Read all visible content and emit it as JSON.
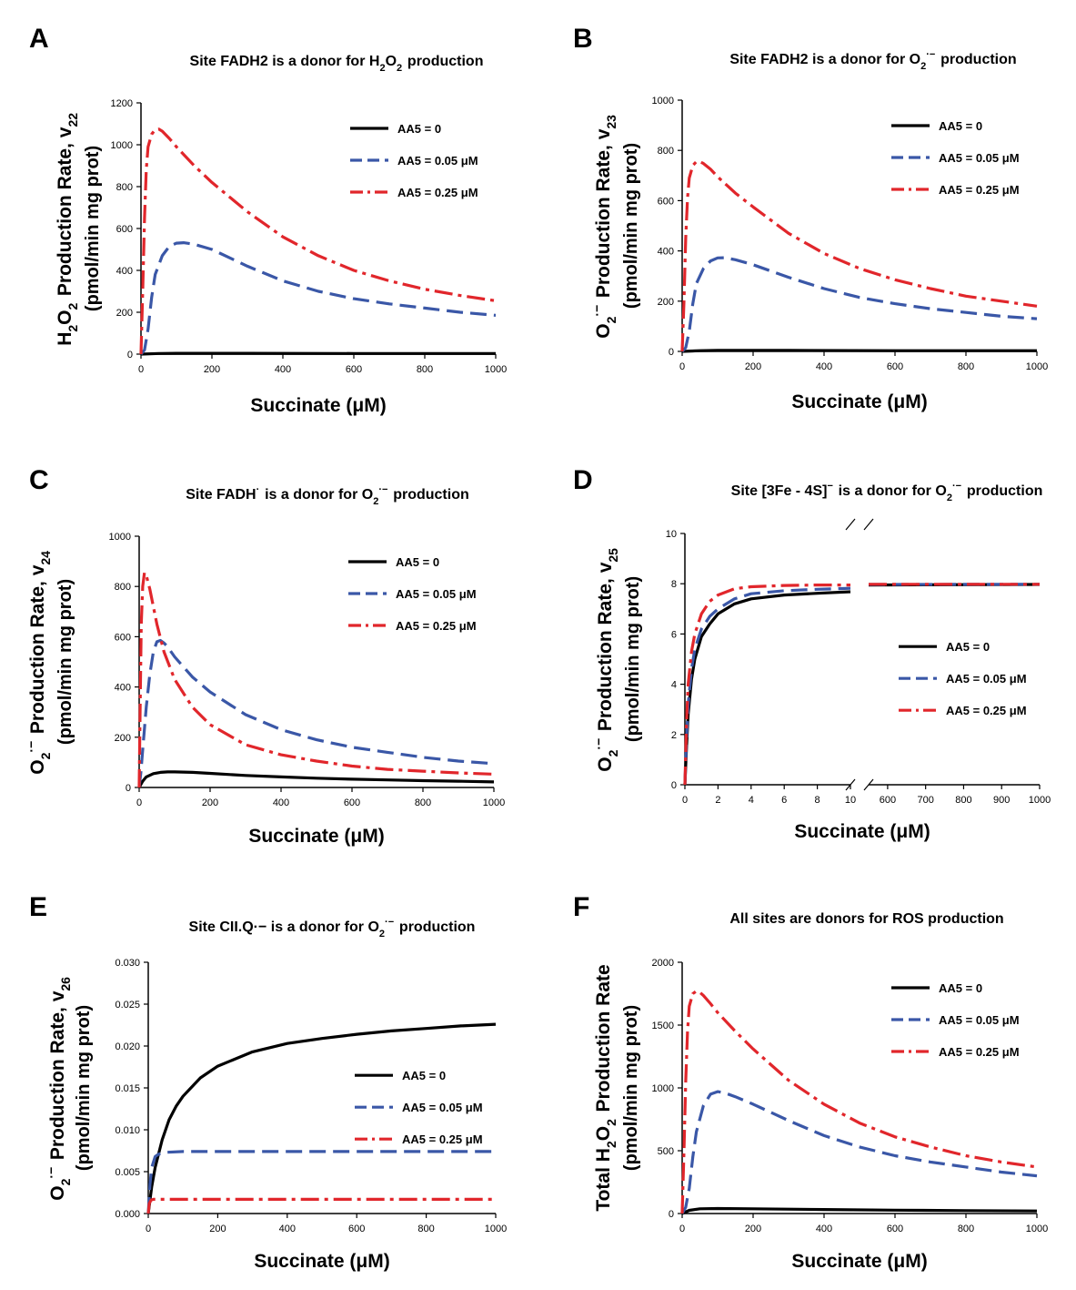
{
  "figure": {
    "x_axis_label": "Succinate (μM)",
    "legend_labels": [
      "AA5 = 0",
      "AA5 = 0.05 μM",
      "AA5 = 0.25 μM"
    ],
    "series_colors": [
      "#000000",
      "#3a57a7",
      "#e1262b"
    ]
  },
  "chart_data": [
    {
      "panel": "A",
      "type": "line",
      "title": "Site FADH2 is a donor for H2O2 production",
      "ylabel_line1": "H2O2 Production Rate, v22",
      "ylabel_line2": "(pmol/min mg prot)",
      "xlabel": "Succinate (μM)",
      "xlim": [
        0,
        1000
      ],
      "ylim": [
        0,
        1200
      ],
      "xticks": [
        0,
        200,
        400,
        600,
        800,
        1000
      ],
      "yticks": [
        0,
        200,
        400,
        600,
        800,
        1000,
        1200
      ],
      "legend_position": "top-right",
      "series": [
        {
          "name": "AA5 = 0",
          "x": [
            0,
            50,
            100,
            300,
            600,
            1000
          ],
          "y": [
            0,
            3,
            4,
            4,
            3,
            3
          ]
        },
        {
          "name": "AA5 = 0.05 μM",
          "x": [
            0,
            10,
            20,
            30,
            40,
            60,
            80,
            100,
            120,
            150,
            200,
            300,
            400,
            500,
            600,
            700,
            800,
            900,
            1000
          ],
          "y": [
            0,
            20,
            120,
            270,
            380,
            470,
            515,
            530,
            532,
            525,
            500,
            420,
            350,
            300,
            265,
            240,
            220,
            200,
            185
          ]
        },
        {
          "name": "AA5 = 0.25 μM",
          "x": [
            0,
            5,
            10,
            15,
            20,
            30,
            40,
            50,
            60,
            80,
            100,
            150,
            200,
            300,
            400,
            500,
            600,
            700,
            800,
            900,
            1000
          ],
          "y": [
            0,
            300,
            650,
            880,
            990,
            1050,
            1072,
            1075,
            1065,
            1030,
            990,
            900,
            820,
            680,
            560,
            470,
            400,
            350,
            310,
            280,
            255
          ]
        }
      ]
    },
    {
      "panel": "B",
      "type": "line",
      "title": "Site FADH2 is a donor for O2·− production",
      "ylabel_line1": "O2·− Production Rate, v23",
      "ylabel_line2": "(pmol/min mg prot)",
      "xlabel": "Succinate (μM)",
      "xlim": [
        0,
        1000
      ],
      "ylim": [
        0,
        1000
      ],
      "xticks": [
        0,
        200,
        400,
        600,
        800,
        1000
      ],
      "yticks": [
        0,
        200,
        400,
        600,
        800,
        1000
      ],
      "legend_position": "top-right",
      "series": [
        {
          "name": "AA5 = 0",
          "x": [
            0,
            50,
            100,
            300,
            600,
            1000
          ],
          "y": [
            0,
            3,
            4,
            4,
            3,
            3
          ]
        },
        {
          "name": "AA5 = 0.05 μM",
          "x": [
            0,
            10,
            20,
            30,
            40,
            60,
            80,
            100,
            120,
            150,
            200,
            300,
            400,
            500,
            600,
            700,
            800,
            900,
            1000
          ],
          "y": [
            0,
            15,
            80,
            190,
            270,
            330,
            360,
            372,
            373,
            365,
            345,
            295,
            250,
            215,
            190,
            170,
            155,
            140,
            130
          ]
        },
        {
          "name": "AA5 = 0.25 μM",
          "x": [
            0,
            5,
            10,
            15,
            20,
            30,
            40,
            50,
            60,
            80,
            100,
            150,
            200,
            300,
            400,
            500,
            600,
            700,
            800,
            900,
            1000
          ],
          "y": [
            0,
            200,
            450,
            610,
            690,
            740,
            755,
            755,
            748,
            725,
            695,
            630,
            575,
            470,
            390,
            330,
            285,
            250,
            220,
            200,
            180
          ]
        }
      ]
    },
    {
      "panel": "C",
      "type": "line",
      "title": "Site FADH· is a donor for O2·− production",
      "ylabel_line1": "O2·− Production Rate, v24",
      "ylabel_line2": "(pmol/min mg prot)",
      "xlabel": "Succinate (μM)",
      "xlim": [
        0,
        1000
      ],
      "ylim": [
        0,
        1000
      ],
      "xticks": [
        0,
        200,
        400,
        600,
        800,
        1000
      ],
      "yticks": [
        0,
        200,
        400,
        600,
        800,
        1000
      ],
      "legend_position": "top-right",
      "series": [
        {
          "name": "AA5 = 0",
          "x": [
            0,
            10,
            20,
            40,
            60,
            80,
            100,
            150,
            200,
            300,
            400,
            500,
            600,
            700,
            800,
            900,
            1000
          ],
          "y": [
            0,
            25,
            42,
            55,
            60,
            62,
            62,
            60,
            56,
            48,
            42,
            37,
            33,
            30,
            27,
            25,
            22
          ]
        },
        {
          "name": "AA5 = 0.05 μM",
          "x": [
            0,
            5,
            10,
            20,
            30,
            40,
            50,
            60,
            70,
            80,
            100,
            150,
            200,
            300,
            400,
            500,
            600,
            700,
            800,
            900,
            1000
          ],
          "y": [
            0,
            60,
            150,
            320,
            450,
            540,
            580,
            585,
            575,
            560,
            520,
            440,
            380,
            290,
            230,
            190,
            160,
            140,
            120,
            105,
            95
          ]
        },
        {
          "name": "AA5 = 0.25 μM",
          "x": [
            0,
            3,
            6,
            10,
            15,
            20,
            30,
            40,
            50,
            70,
            100,
            150,
            200,
            300,
            400,
            500,
            600,
            700,
            800,
            900,
            1000
          ],
          "y": [
            0,
            350,
            650,
            800,
            855,
            845,
            790,
            720,
            650,
            540,
            430,
            320,
            250,
            170,
            130,
            105,
            85,
            72,
            65,
            58,
            53
          ]
        }
      ]
    },
    {
      "panel": "D",
      "type": "line",
      "title": "Site [3Fe - 4S]− is a donor for O2·− production",
      "ylabel_line1": "O2·− Production Rate, v25",
      "ylabel_line2": "(pmol/min mg prot)",
      "xlabel": "Succinate (μM)",
      "axis_break": true,
      "xlim_left": [
        0,
        10
      ],
      "xlim_right": [
        550,
        1000
      ],
      "xticks_left": [
        0,
        2,
        4,
        6,
        8,
        10
      ],
      "xticks_right": [
        600,
        700,
        800,
        900,
        1000
      ],
      "ylim": [
        0,
        10
      ],
      "yticks": [
        0,
        2,
        4,
        6,
        8,
        10
      ],
      "legend_position": "center-right",
      "series": [
        {
          "name": "AA5 = 0",
          "x": [
            0,
            0.1,
            0.2,
            0.4,
            0.6,
            1,
            1.5,
            2,
            3,
            4,
            6,
            8,
            10,
            550,
            1000
          ],
          "y": [
            0,
            1.5,
            2.8,
            4.2,
            5.0,
            5.9,
            6.4,
            6.8,
            7.2,
            7.4,
            7.55,
            7.62,
            7.68,
            7.95,
            7.97
          ]
        },
        {
          "name": "AA5 = 0.05 μM",
          "x": [
            0,
            0.1,
            0.2,
            0.4,
            0.6,
            1,
            1.5,
            2,
            3,
            4,
            6,
            8,
            10,
            550,
            1000
          ],
          "y": [
            0,
            1.8,
            3.2,
            4.6,
            5.4,
            6.2,
            6.7,
            7.0,
            7.4,
            7.6,
            7.72,
            7.78,
            7.82,
            7.97,
            7.98
          ]
        },
        {
          "name": "AA5 = 0.25 μM",
          "x": [
            0,
            0.1,
            0.2,
            0.4,
            0.6,
            1,
            1.5,
            2,
            3,
            4,
            6,
            8,
            10,
            550,
            1000
          ],
          "y": [
            0,
            2.5,
            4.0,
            5.3,
            6.0,
            6.8,
            7.3,
            7.55,
            7.8,
            7.88,
            7.93,
            7.95,
            7.95,
            7.98,
            7.98
          ]
        }
      ]
    },
    {
      "panel": "E",
      "type": "line",
      "title": "Site CII.Q·− is a donor for O2·− production",
      "ylabel_line1": "O2·− Production Rate, v26",
      "ylabel_line2": "(pmol/min mg prot)",
      "xlabel": "Succinate (μM)",
      "xlim": [
        0,
        1000
      ],
      "ylim": [
        0,
        0.03
      ],
      "xticks": [
        0,
        200,
        400,
        600,
        800,
        1000
      ],
      "yticks": [
        0,
        0.005,
        0.01,
        0.015,
        0.02,
        0.025,
        0.03
      ],
      "ytick_labels": [
        "0.000",
        "0.005",
        "0.010",
        "0.015",
        "0.020",
        "0.025",
        "0.030"
      ],
      "legend_position": "center-right",
      "series": [
        {
          "name": "AA5 = 0",
          "x": [
            0,
            10,
            20,
            40,
            60,
            80,
            100,
            150,
            200,
            300,
            400,
            500,
            600,
            700,
            800,
            900,
            1000
          ],
          "y": [
            0,
            0.0032,
            0.0055,
            0.0088,
            0.0112,
            0.0128,
            0.014,
            0.0162,
            0.0176,
            0.0193,
            0.0203,
            0.0209,
            0.0214,
            0.0218,
            0.0221,
            0.0224,
            0.0226
          ]
        },
        {
          "name": "AA5 = 0.05 μM",
          "x": [
            0,
            5,
            10,
            20,
            30,
            50,
            100,
            1000
          ],
          "y": [
            0,
            0.0035,
            0.0055,
            0.0068,
            0.0071,
            0.0073,
            0.0074,
            0.0074
          ]
        },
        {
          "name": "AA5 = 0.25 μM",
          "x": [
            0,
            3,
            8,
            15,
            30,
            1000
          ],
          "y": [
            0,
            0.0012,
            0.0016,
            0.0017,
            0.0017,
            0.0017
          ]
        }
      ]
    },
    {
      "panel": "F",
      "type": "line",
      "title": "All sites are donors for ROS production",
      "ylabel_line1": "Total H2O2 Production Rate",
      "ylabel_line2": "(pmol/min mg prot)",
      "xlabel": "Succinate (μM)",
      "xlim": [
        0,
        1000
      ],
      "ylim": [
        0,
        2000
      ],
      "xticks": [
        0,
        200,
        400,
        600,
        800,
        1000
      ],
      "yticks": [
        0,
        500,
        1000,
        1500,
        2000
      ],
      "legend_position": "top-right",
      "series": [
        {
          "name": "AA5 = 0",
          "x": [
            0,
            20,
            50,
            100,
            200,
            400,
            600,
            800,
            1000
          ],
          "y": [
            0,
            25,
            38,
            40,
            38,
            32,
            27,
            23,
            20
          ]
        },
        {
          "name": "AA5 = 0.05 μM",
          "x": [
            0,
            10,
            20,
            30,
            40,
            60,
            80,
            100,
            120,
            150,
            200,
            300,
            400,
            500,
            600,
            700,
            800,
            900,
            1000
          ],
          "y": [
            0,
            50,
            200,
            450,
            650,
            860,
            950,
            970,
            960,
            930,
            870,
            740,
            620,
            530,
            460,
            410,
            370,
            330,
            300
          ]
        },
        {
          "name": "AA5 = 0.25 μM",
          "x": [
            0,
            5,
            10,
            15,
            20,
            30,
            40,
            50,
            60,
            80,
            100,
            150,
            200,
            300,
            400,
            500,
            600,
            700,
            800,
            900,
            1000
          ],
          "y": [
            0,
            500,
            1050,
            1450,
            1650,
            1750,
            1770,
            1760,
            1735,
            1670,
            1600,
            1450,
            1310,
            1060,
            870,
            720,
            610,
            530,
            460,
            410,
            370
          ]
        }
      ]
    }
  ]
}
